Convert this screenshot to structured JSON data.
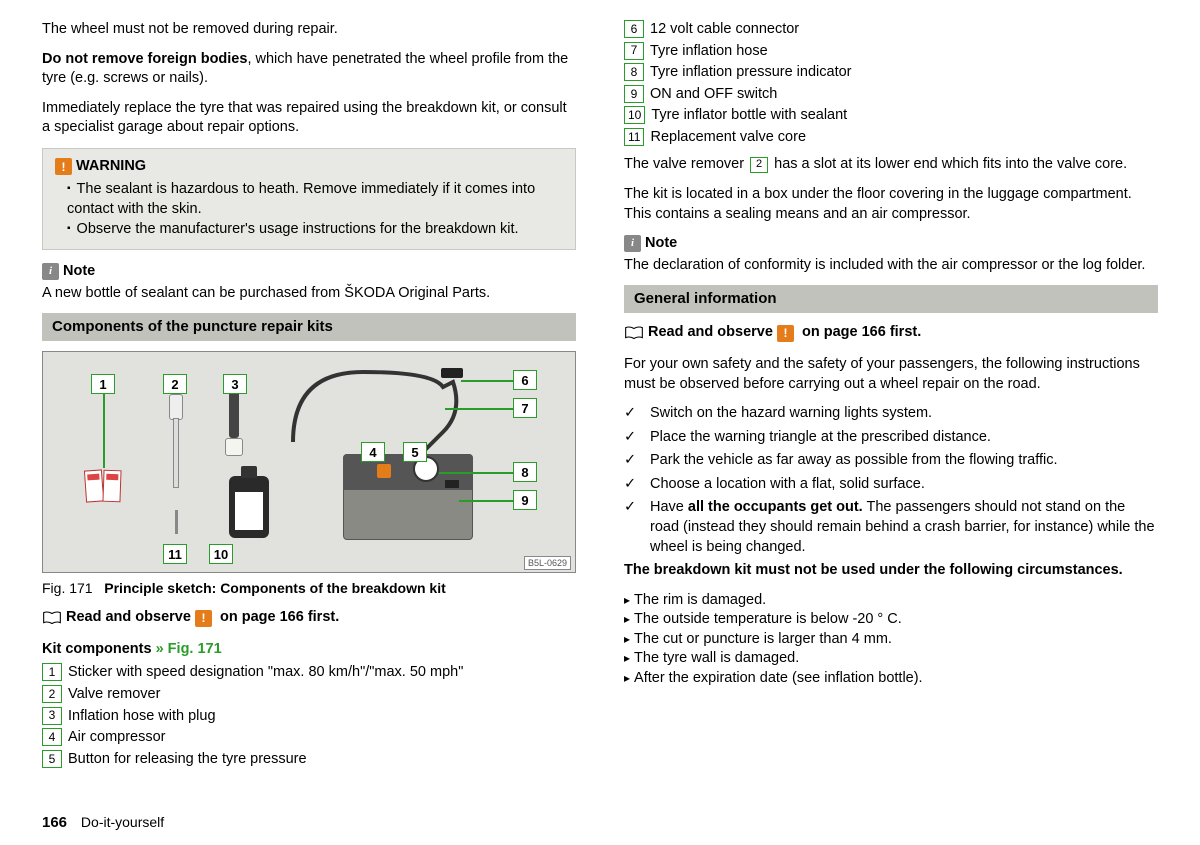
{
  "left": {
    "p1": "The wheel must not be removed during repair.",
    "p2a": "Do not remove foreign bodies",
    "p2b": ", which have penetrated the wheel profile from the tyre (e.g. screws or nails).",
    "p3": "Immediately replace the tyre that was repaired using the breakdown kit, or consult a specialist garage about repair options.",
    "warning_label": "WARNING",
    "warn1": "The sealant is hazardous to heath. Remove immediately if it comes into contact with the skin.",
    "warn2": "Observe the manufacturer's usage instructions for the breakdown kit.",
    "note_label": "Note",
    "note_text": "A new bottle of sealant can be purchased from ŠKODA Original Parts.",
    "section_title": "Components of the puncture repair kits",
    "fig_caption_a": "Fig. 171",
    "fig_caption_b": "Principle sketch: Components of the breakdown kit",
    "fig_code": "B5L-0629",
    "read_observe_a": "Read and observe",
    "read_observe_b": "on page 166 first.",
    "kit_head_a": "Kit components",
    "kit_head_b": " » Fig. 171",
    "items": [
      {
        "n": "1",
        "t": "Sticker with speed designation \"max. 80 km/h\"/\"max. 50 mph\""
      },
      {
        "n": "2",
        "t": "Valve remover"
      },
      {
        "n": "3",
        "t": "Inflation hose with plug"
      },
      {
        "n": "4",
        "t": "Air compressor"
      },
      {
        "n": "5",
        "t": "Button for releasing the tyre pressure"
      }
    ]
  },
  "right": {
    "items2": [
      {
        "n": "6",
        "t": "12 volt cable connector"
      },
      {
        "n": "7",
        "t": "Tyre inflation hose"
      },
      {
        "n": "8",
        "t": "Tyre inflation pressure indicator"
      },
      {
        "n": "9",
        "t": "ON and OFF switch"
      },
      {
        "n": "10",
        "t": "Tyre inflator bottle with sealant"
      },
      {
        "n": "11",
        "t": "Replacement valve core"
      }
    ],
    "valve_a": "The valve remover ",
    "valve_n": "2",
    "valve_b": " has a slot at its lower end which fits into the valve core.",
    "loc": "The kit is located in a box under the floor covering in the luggage compartment. This contains a sealing means and an air compressor.",
    "note_label": "Note",
    "note_text": "The declaration of conformity is included with the air compressor or the log folder.",
    "section_title": "General information",
    "read_observe_a": "Read and observe",
    "read_observe_b": "on page 166 first.",
    "safety": "For your own safety and the safety of your passengers, the following instructions must be observed before carrying out a wheel repair on the road.",
    "checks": [
      "Switch on the hazard warning lights system.",
      "Place the warning triangle at the prescribed distance.",
      "Park the vehicle as far away as possible from the flowing traffic.",
      "Choose a location with a flat, solid surface."
    ],
    "check5a": "Have ",
    "check5b": "all the occupants get out.",
    "check5c": " The passengers should not stand on the road (instead they should remain behind a crash barrier, for instance) while the wheel is being changed.",
    "notuse_head": "The breakdown kit must not be used under the following circumstances.",
    "notuse": [
      "The rim is damaged.",
      "The outside temperature is below -20 ° C.",
      "The cut or puncture is larger than 4 mm.",
      "The tyre wall is damaged.",
      "After the expiration date (see inflation bottle)."
    ]
  },
  "callouts": [
    "1",
    "2",
    "3",
    "4",
    "5",
    "6",
    "7",
    "8",
    "9",
    "10",
    "11"
  ],
  "footer": {
    "page": "166",
    "chapter": "Do-it-yourself"
  }
}
